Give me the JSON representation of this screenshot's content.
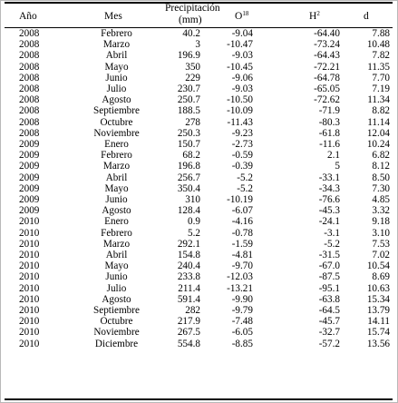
{
  "headers": {
    "year": "Año",
    "month": "Mes",
    "precip_line1": "Precipitación",
    "precip_line2": "(mm)",
    "o_base": "O",
    "o_sup": "18",
    "h_base": "H",
    "h_sup": "2",
    "d": "d"
  },
  "rows": [
    {
      "year": "2008",
      "month": "Febrero",
      "precip": "40.2",
      "o18": "-9.04",
      "h2": "-64.40",
      "d": "7.88"
    },
    {
      "year": "2008",
      "month": "Marzo",
      "precip": "3",
      "o18": "-10.47",
      "h2": "-73.24",
      "d": "10.48"
    },
    {
      "year": "2008",
      "month": "Abril",
      "precip": "196.9",
      "o18": "-9.03",
      "h2": "-64.43",
      "d": "7.82"
    },
    {
      "year": "2008",
      "month": "Mayo",
      "precip": "350",
      "o18": "-10.45",
      "h2": "-72.21",
      "d": "11.35"
    },
    {
      "year": "2008",
      "month": "Junio",
      "precip": "229",
      "o18": "-9.06",
      "h2": "-64.78",
      "d": "7.70"
    },
    {
      "year": "2008",
      "month": "Julio",
      "precip": "230.7",
      "o18": "-9.03",
      "h2": "-65.05",
      "d": "7.19"
    },
    {
      "year": "2008",
      "month": "Agosto",
      "precip": "250.7",
      "o18": "-10.50",
      "h2": "-72.62",
      "d": "11.34"
    },
    {
      "year": "2008",
      "month": "Septiembre",
      "precip": "188.5",
      "o18": "-10.09",
      "h2": "-71.9",
      "d": "8.82"
    },
    {
      "year": "2008",
      "month": "Octubre",
      "precip": "278",
      "o18": "-11.43",
      "h2": "-80.3",
      "d": "11.14"
    },
    {
      "year": "2008",
      "month": "Noviembre",
      "precip": "250.3",
      "o18": "-9.23",
      "h2": "-61.8",
      "d": "12.04"
    },
    {
      "year": "2009",
      "month": "Enero",
      "precip": "150.7",
      "o18": "-2.73",
      "h2": "-11.6",
      "d": "10.24"
    },
    {
      "year": "2009",
      "month": "Febrero",
      "precip": "68.2",
      "o18": "-0.59",
      "h2": "2.1",
      "d": "6.82"
    },
    {
      "year": "2009",
      "month": "Marzo",
      "precip": "196.8",
      "o18": "-0.39",
      "h2": "5",
      "d": "8.12"
    },
    {
      "year": "2009",
      "month": "Abril",
      "precip": "256.7",
      "o18": "-5.2",
      "h2": "-33.1",
      "d": "8.50"
    },
    {
      "year": "2009",
      "month": "Mayo",
      "precip": "350.4",
      "o18": "-5.2",
      "h2": "-34.3",
      "d": "7.30"
    },
    {
      "year": "2009",
      "month": "Junio",
      "precip": "310",
      "o18": "-10.19",
      "h2": "-76.6",
      "d": "4.85"
    },
    {
      "year": "2009",
      "month": "Agosto",
      "precip": "128.4",
      "o18": "-6.07",
      "h2": "-45.3",
      "d": "3.32"
    },
    {
      "year": "2010",
      "month": "Enero",
      "precip": "0.9",
      "o18": "-4.16",
      "h2": "-24.1",
      "d": "9.18"
    },
    {
      "year": "2010",
      "month": "Febrero",
      "precip": "5.2",
      "o18": "-0.78",
      "h2": "-3.1",
      "d": "3.10"
    },
    {
      "year": "2010",
      "month": "Marzo",
      "precip": "292.1",
      "o18": "-1.59",
      "h2": "-5.2",
      "d": "7.53"
    },
    {
      "year": "2010",
      "month": "Abril",
      "precip": "154.8",
      "o18": "-4.81",
      "h2": "-31.5",
      "d": "7.02"
    },
    {
      "year": "2010",
      "month": "Mayo",
      "precip": "240.4",
      "o18": "-9.70",
      "h2": "-67.0",
      "d": "10.54"
    },
    {
      "year": "2010",
      "month": "Junio",
      "precip": "233.8",
      "o18": "-12.03",
      "h2": "-87.5",
      "d": "8.69"
    },
    {
      "year": "2010",
      "month": "Julio",
      "precip": "211.4",
      "o18": "-13.21",
      "h2": "-95.1",
      "d": "10.63"
    },
    {
      "year": "2010",
      "month": "Agosto",
      "precip": "591.4",
      "o18": "-9.90",
      "h2": "-63.8",
      "d": "15.34"
    },
    {
      "year": "2010",
      "month": "Septiembre",
      "precip": "282",
      "o18": "-9.79",
      "h2": "-64.5",
      "d": "13.79"
    },
    {
      "year": "2010",
      "month": "Octubre",
      "precip": "217.9",
      "o18": "-7.48",
      "h2": "-45.7",
      "d": "14.11"
    },
    {
      "year": "2010",
      "month": "Noviembre",
      "precip": "267.5",
      "o18": "-6.05",
      "h2": "-32.7",
      "d": "15.74"
    },
    {
      "year": "2010",
      "month": "Diciembre",
      "precip": "554.8",
      "o18": "-8.85",
      "h2": "-57.2",
      "d": "13.56"
    }
  ]
}
